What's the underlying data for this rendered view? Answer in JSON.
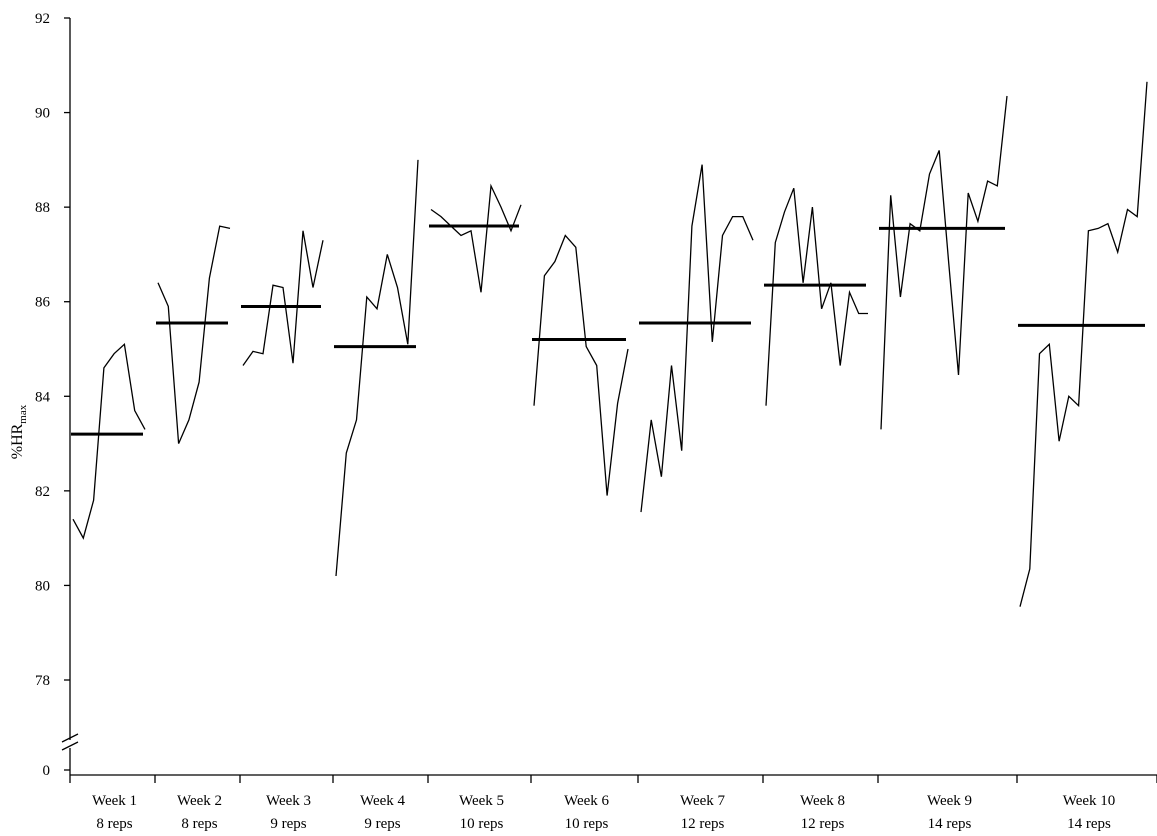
{
  "chart_data": {
    "type": "line",
    "title": "",
    "ylabel": "%HR",
    "ylabel_sub": "max",
    "xlabel": "",
    "ylim": [
      78,
      92
    ],
    "y_ticks": [
      "92",
      "90",
      "88",
      "86",
      "84",
      "82",
      "80",
      "78",
      "0"
    ],
    "axis_break": true,
    "grid": false,
    "legend": "none",
    "groups": [
      {
        "week": "Week 1",
        "reps": "8 reps",
        "mean": 83.2,
        "values": [
          81.4,
          81.0,
          81.8,
          84.6,
          84.9,
          85.1,
          83.7,
          83.3
        ]
      },
      {
        "week": "Week 2",
        "reps": "8 reps",
        "mean": 85.55,
        "values": [
          86.4,
          85.9,
          83.0,
          83.5,
          84.3,
          86.5,
          87.6,
          87.55
        ]
      },
      {
        "week": "Week 3",
        "reps": "9 reps",
        "mean": 85.9,
        "values": [
          84.65,
          84.95,
          84.9,
          86.35,
          86.3,
          84.7,
          87.5,
          86.3,
          87.3
        ]
      },
      {
        "week": "Week 4",
        "reps": "9 reps",
        "mean": 85.05,
        "values": [
          80.2,
          82.8,
          83.5,
          86.1,
          85.85,
          87.0,
          86.3,
          85.1,
          89.0
        ]
      },
      {
        "week": "Week 5",
        "reps": "10 reps",
        "mean": 87.6,
        "values": [
          87.95,
          87.8,
          87.6,
          87.4,
          87.5,
          86.2,
          88.45,
          88.0,
          87.5,
          88.05
        ]
      },
      {
        "week": "Week 6",
        "reps": "10 reps",
        "mean": 85.2,
        "values": [
          83.8,
          86.55,
          86.85,
          87.4,
          87.15,
          85.05,
          84.65,
          81.9,
          83.85,
          85.0
        ]
      },
      {
        "week": "Week 7",
        "reps": "12 reps",
        "mean": 85.55,
        "values": [
          81.55,
          83.5,
          82.3,
          84.65,
          82.85,
          87.6,
          88.9,
          85.15,
          87.4,
          87.8,
          87.8,
          87.3
        ]
      },
      {
        "week": "Week 8",
        "reps": "12 reps",
        "mean": 86.35,
        "values": [
          83.8,
          87.25,
          87.9,
          88.4,
          86.4,
          88.0,
          85.85,
          86.4,
          84.65,
          86.2,
          85.75,
          85.75
        ]
      },
      {
        "week": "Week 9",
        "reps": "14 reps",
        "mean": 87.55,
        "values": [
          83.3,
          88.25,
          86.1,
          87.65,
          87.5,
          88.7,
          89.2,
          86.8,
          84.45,
          88.3,
          87.7,
          88.55,
          88.45,
          90.35
        ]
      },
      {
        "week": "Week 10",
        "reps": "14 reps",
        "mean": 85.5,
        "values": [
          79.55,
          80.35,
          84.9,
          85.1,
          83.05,
          84.0,
          83.8,
          87.5,
          87.55,
          87.65,
          87.05,
          87.95,
          87.8,
          90.65
        ]
      }
    ]
  }
}
